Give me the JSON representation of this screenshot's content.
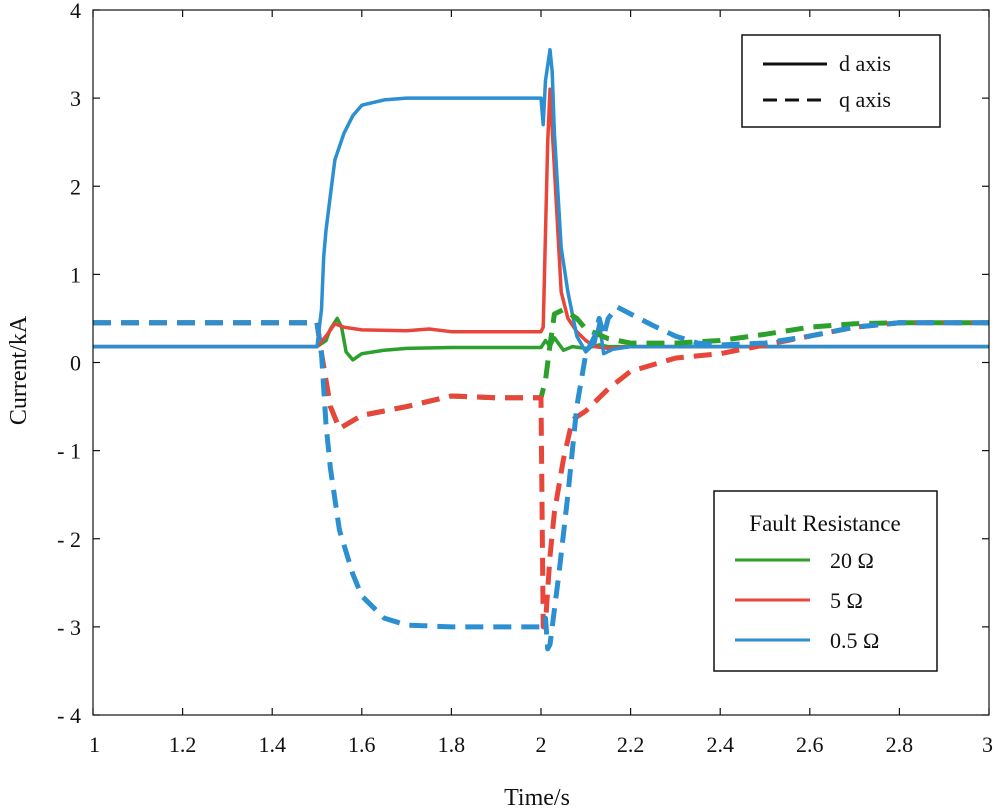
{
  "chart_data": {
    "type": "line",
    "xlabel": "Time/s",
    "ylabel": "Current/kA",
    "xlim": [
      1,
      3
    ],
    "ylim": [
      -4,
      4
    ],
    "xticks": [
      1,
      1.2,
      1.4,
      1.6,
      1.8,
      2,
      2.2,
      2.4,
      2.6,
      2.8,
      3
    ],
    "xtick_labels": [
      "1",
      "1.2",
      "1.4",
      "1.6",
      "1.8",
      "2",
      "2.2",
      "2.4",
      "2.6",
      "2.8",
      "3"
    ],
    "yticks": [
      4,
      3,
      2,
      1,
      0,
      -1,
      -2,
      -3,
      -4
    ],
    "ytick_labels": [
      "4",
      "3",
      "2",
      "1",
      "0",
      "- 1",
      "- 2",
      "- 3",
      "- 4"
    ],
    "grid": false,
    "legend_style": {
      "placement": "top-right",
      "entries": [
        {
          "label": "d axis",
          "dash": "solid"
        },
        {
          "label": "q axis",
          "dash": "dashed"
        }
      ]
    },
    "legend_resistance": {
      "placement": "bottom-right",
      "title": "Fault Resistance",
      "entries": [
        {
          "label": "20 Ω",
          "color": "#2ca02c"
        },
        {
          "label": "5 Ω",
          "color": "#e8463a"
        },
        {
          "label": "0.5 Ω",
          "color": "#2b8fd1"
        }
      ]
    },
    "series": [
      {
        "component": "d axis",
        "resistance": "20 Ω",
        "color": "#2ca02c",
        "dash": "solid",
        "x": [
          1.0,
          1.5,
          1.52,
          1.53,
          1.545,
          1.555,
          1.565,
          1.58,
          1.6,
          1.65,
          1.7,
          1.8,
          1.9,
          2.0,
          2.01,
          2.02,
          2.03,
          2.05,
          2.07,
          2.1,
          2.13,
          2.15,
          2.2,
          2.3,
          3.0
        ],
        "y": [
          0.18,
          0.18,
          0.25,
          0.38,
          0.5,
          0.4,
          0.12,
          0.03,
          0.1,
          0.14,
          0.16,
          0.17,
          0.17,
          0.17,
          0.25,
          0.18,
          0.28,
          0.14,
          0.18,
          0.16,
          0.2,
          0.18,
          0.18,
          0.18,
          0.18
        ]
      },
      {
        "component": "d axis",
        "resistance": "5 Ω",
        "color": "#e8463a",
        "dash": "solid",
        "x": [
          1.0,
          1.5,
          1.52,
          1.54,
          1.56,
          1.6,
          1.7,
          1.75,
          1.8,
          1.9,
          2.0,
          2.005,
          2.015,
          2.02,
          2.03,
          2.045,
          2.06,
          2.08,
          2.1,
          2.12,
          2.15,
          2.2,
          2.3,
          3.0
        ],
        "y": [
          0.18,
          0.18,
          0.3,
          0.44,
          0.4,
          0.37,
          0.36,
          0.38,
          0.35,
          0.35,
          0.35,
          0.4,
          2.5,
          3.1,
          2.2,
          0.8,
          0.5,
          0.35,
          0.25,
          0.18,
          0.16,
          0.18,
          0.18,
          0.18
        ]
      },
      {
        "component": "d axis",
        "resistance": "0.5 Ω",
        "color": "#2b8fd1",
        "dash": "solid",
        "x": [
          1.0,
          1.5,
          1.51,
          1.515,
          1.52,
          1.53,
          1.54,
          1.56,
          1.58,
          1.6,
          1.65,
          1.7,
          1.8,
          1.9,
          2.0,
          2.005,
          2.01,
          2.02,
          2.025,
          2.03,
          2.045,
          2.06,
          2.08,
          2.1,
          2.12,
          2.13,
          2.14,
          2.16,
          2.2,
          2.3,
          3.0
        ],
        "y": [
          0.18,
          0.18,
          0.6,
          1.2,
          1.5,
          1.9,
          2.3,
          2.6,
          2.8,
          2.92,
          2.98,
          3.0,
          3.0,
          3.0,
          3.0,
          2.7,
          3.2,
          3.55,
          3.3,
          2.6,
          1.3,
          0.8,
          0.3,
          0.12,
          0.22,
          0.45,
          0.1,
          0.15,
          0.18,
          0.18,
          0.18
        ]
      },
      {
        "component": "q axis",
        "resistance": "20 Ω",
        "color": "#2ca02c",
        "dash": "dashed",
        "x": [
          1.0,
          1.5,
          1.51,
          1.53,
          1.55,
          1.6,
          1.7,
          1.8,
          1.9,
          2.0,
          2.01,
          2.02,
          2.03,
          2.05,
          2.08,
          2.1,
          2.15,
          2.2,
          2.3,
          2.4,
          2.5,
          2.6,
          2.7,
          2.8,
          3.0
        ],
        "y": [
          0.45,
          0.45,
          0.1,
          -0.5,
          -0.75,
          -0.6,
          -0.5,
          -0.38,
          -0.4,
          -0.4,
          -0.2,
          0.2,
          0.55,
          0.6,
          0.5,
          0.38,
          0.27,
          0.22,
          0.22,
          0.25,
          0.32,
          0.4,
          0.44,
          0.45,
          0.45
        ]
      },
      {
        "component": "q axis",
        "resistance": "5 Ω",
        "color": "#e8463a",
        "dash": "dashed",
        "x": [
          1.0,
          1.5,
          1.51,
          1.53,
          1.55,
          1.6,
          1.7,
          1.8,
          1.9,
          2.0,
          2.005,
          2.01,
          2.02,
          2.03,
          2.05,
          2.07,
          2.1,
          2.15,
          2.2,
          2.3,
          2.4,
          2.5,
          2.6,
          2.7,
          2.8,
          3.0
        ],
        "y": [
          0.45,
          0.45,
          0.1,
          -0.5,
          -0.75,
          -0.6,
          -0.5,
          -0.38,
          -0.4,
          -0.4,
          -3.0,
          -2.95,
          -2.2,
          -1.7,
          -1.1,
          -0.65,
          -0.55,
          -0.3,
          -0.1,
          0.05,
          0.1,
          0.2,
          0.3,
          0.4,
          0.45,
          0.45
        ]
      },
      {
        "component": "q axis",
        "resistance": "0.5 Ω",
        "color": "#2b8fd1",
        "dash": "dashed",
        "x": [
          1.0,
          1.5,
          1.51,
          1.52,
          1.53,
          1.55,
          1.58,
          1.6,
          1.65,
          1.7,
          1.8,
          1.9,
          2.0,
          2.01,
          2.015,
          2.02,
          2.04,
          2.06,
          2.08,
          2.1,
          2.12,
          2.13,
          2.14,
          2.15,
          2.17,
          2.2,
          2.25,
          2.3,
          2.35,
          2.4,
          2.5,
          2.6,
          2.7,
          2.8,
          3.0
        ],
        "y": [
          0.45,
          0.45,
          0.1,
          -0.7,
          -1.2,
          -1.9,
          -2.4,
          -2.65,
          -2.9,
          -2.98,
          -3.0,
          -3.0,
          -3.0,
          -2.9,
          -3.25,
          -3.2,
          -2.4,
          -1.5,
          -0.5,
          0.1,
          0.3,
          0.5,
          0.3,
          0.5,
          0.63,
          0.55,
          0.42,
          0.3,
          0.22,
          0.2,
          0.22,
          0.3,
          0.4,
          0.45,
          0.45
        ]
      }
    ]
  }
}
